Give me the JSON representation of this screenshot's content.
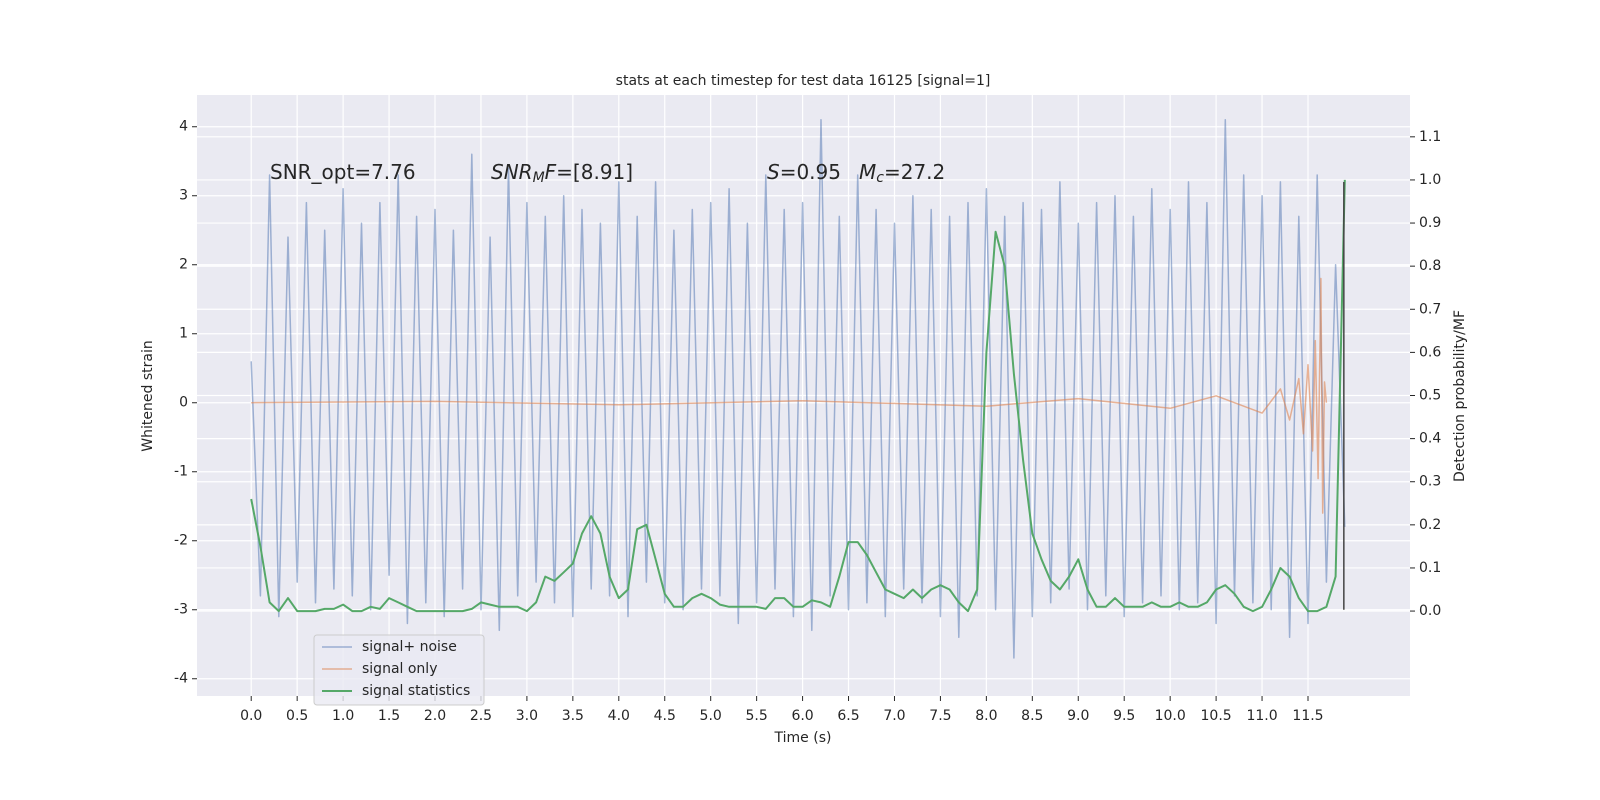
{
  "chart_data": {
    "type": "line",
    "title": "stats at each timestep for test data 16125 [signal=1]",
    "x_label": "Time (s)",
    "y_label": "Whitened strain",
    "y2_label": "Detection probability/MF",
    "xlim": [
      -0.59,
      12.61
    ],
    "ylim": [
      -4.25,
      4.46
    ],
    "y2lim": [
      -0.197,
      1.197
    ],
    "xticks": [
      {
        "value": 0,
        "label": "0.0"
      },
      0.5,
      {
        "value": 1,
        "label": "1.0"
      },
      1.5,
      {
        "value": 2,
        "label": "2.0"
      },
      2.5,
      {
        "value": 3,
        "label": "3.0"
      },
      3.5,
      {
        "value": 4,
        "label": "4.0"
      },
      4.5,
      {
        "value": 5,
        "label": "5.0"
      },
      5.5,
      {
        "value": 6,
        "label": "6.0"
      },
      6.5,
      {
        "value": 7,
        "label": "7.0"
      },
      7.5,
      {
        "value": 8,
        "label": "8.0"
      },
      8.5,
      {
        "value": 9,
        "label": "9.0"
      },
      9.5,
      {
        "value": 10,
        "label": "10.0"
      },
      10.5,
      {
        "value": 11,
        "label": "11.0"
      },
      11.5
    ],
    "yticks": [
      -4,
      -3,
      -2,
      -1,
      0,
      1,
      2,
      3,
      4
    ],
    "y2ticks": [
      {
        "value": 0,
        "label": "0.0"
      },
      0.1,
      0.2,
      0.3,
      0.4,
      0.5,
      0.6,
      0.7,
      0.8,
      0.9,
      {
        "value": 1,
        "label": "1.0"
      },
      1.1
    ],
    "grid": true,
    "legend": "lower left",
    "annotations": [
      [
        {
          "text": "SNR_opt=7.76",
          "italic": false,
          "sub": false
        }
      ],
      [
        {
          "text": "SNR",
          "italic": true,
          "sub": false
        },
        {
          "text": "M",
          "italic": true,
          "sub": true
        },
        {
          "text": "F",
          "italic": true,
          "sub": false
        },
        {
          "text": "=[8.91]",
          "italic": false,
          "sub": false
        }
      ],
      [
        {
          "text": "S",
          "italic": true,
          "sub": false
        },
        {
          "text": "=0.95",
          "italic": false,
          "sub": false
        }
      ],
      [
        {
          "text": "M",
          "italic": true,
          "sub": false
        },
        {
          "text": "c",
          "italic": true,
          "sub": true
        },
        {
          "text": "=27.2",
          "italic": false,
          "sub": false
        }
      ]
    ],
    "vline": {
      "x": 11.89,
      "y": [
        -3.0,
        3.2
      ],
      "color": "#444444"
    },
    "x": [
      0,
      0.1,
      0.2,
      0.3,
      0.4,
      0.5,
      0.6,
      0.7,
      0.8,
      0.9,
      1,
      1.1,
      1.2,
      1.3,
      1.4,
      1.5,
      1.6,
      1.7,
      1.8,
      1.9,
      2,
      2.1,
      2.2,
      2.3,
      2.4,
      2.5,
      2.6,
      2.7,
      2.8,
      2.9,
      3,
      3.1,
      3.2,
      3.3,
      3.4,
      3.5,
      3.6,
      3.7,
      3.8,
      3.9,
      4,
      4.1,
      4.2,
      4.3,
      4.4,
      4.5,
      4.6,
      4.7,
      4.8,
      4.9,
      5,
      5.1,
      5.2,
      5.3,
      5.4,
      5.5,
      5.6,
      5.7,
      5.8,
      5.9,
      6,
      6.1,
      6.2,
      6.3,
      6.4,
      6.5,
      6.6,
      6.7,
      6.8,
      6.9,
      7,
      7.1,
      7.2,
      7.3,
      7.4,
      7.5,
      7.6,
      7.7,
      7.8,
      7.9,
      8,
      8.1,
      8.2,
      8.3,
      8.4,
      8.5,
      8.6,
      8.7,
      8.8,
      8.9,
      9,
      9.1,
      9.2,
      9.3,
      9.4,
      9.5,
      9.6,
      9.7,
      9.8,
      9.9,
      10,
      10.1,
      10.2,
      10.3,
      10.4,
      10.5,
      10.6,
      10.7,
      10.8,
      10.9,
      11,
      11.1,
      11.2,
      11.3,
      11.4,
      11.5,
      11.6,
      11.7,
      11.8,
      11.9
    ],
    "series": [
      {
        "name": "signal+ noise",
        "color": "#4c72b0",
        "axis": "y",
        "values": [
          0.6,
          -2.8,
          3.3,
          -3.1,
          2.4,
          -2.6,
          2.9,
          -2.9,
          2.5,
          -2.7,
          3.1,
          -2.8,
          2.6,
          -3.0,
          2.9,
          -2.5,
          3.3,
          -3.2,
          2.7,
          -2.9,
          2.8,
          -3.1,
          2.5,
          -2.7,
          3.6,
          -3.0,
          2.4,
          -3.3,
          3.4,
          -2.8,
          2.9,
          -2.6,
          2.7,
          -2.9,
          3.0,
          -3.1,
          2.8,
          -2.7,
          2.6,
          -2.8,
          3.2,
          -3.1,
          2.7,
          -2.6,
          3.2,
          -2.9,
          2.5,
          -3.0,
          2.8,
          -2.7,
          2.9,
          -2.8,
          3.1,
          -3.2,
          2.6,
          -2.9,
          3.3,
          -2.7,
          2.8,
          -3.1,
          2.9,
          -3.3,
          4.1,
          -2.8,
          2.7,
          -3.0,
          3.3,
          -2.9,
          2.8,
          -3.1,
          2.6,
          -2.7,
          3.0,
          -2.9,
          2.8,
          -3.1,
          2.7,
          -3.4,
          2.9,
          -2.8,
          3.1,
          -3.0,
          2.7,
          -3.7,
          2.9,
          -3.1,
          2.8,
          -2.9,
          3.2,
          -2.7,
          2.6,
          -3.0,
          2.9,
          -2.8,
          3.0,
          -3.1,
          2.7,
          -2.9,
          3.1,
          -2.8,
          2.8,
          -3.0,
          3.2,
          -2.9,
          2.9,
          -3.2,
          4.1,
          -2.8,
          3.3,
          -2.9,
          3.0,
          -3.0,
          3.2,
          -3.4,
          2.7,
          -3.2,
          3.3,
          -2.6,
          2.0,
          -1.8
        ]
      },
      {
        "name": "signal only",
        "color": "#dd8452",
        "axis": "y",
        "x": [
          0,
          2,
          4,
          6,
          8,
          9,
          10,
          10.5,
          11,
          11.2,
          11.3,
          11.4,
          11.45,
          11.5,
          11.55,
          11.58,
          11.61,
          11.64,
          11.66,
          11.68,
          11.7
        ],
        "values": [
          0,
          0.02,
          -0.03,
          0.03,
          -0.05,
          0.06,
          -0.08,
          0.1,
          -0.15,
          0.2,
          -0.25,
          0.35,
          -0.45,
          0.55,
          -0.7,
          0.9,
          -1.1,
          1.8,
          -1.6,
          0.3,
          0
        ]
      },
      {
        "name": "signal statistics",
        "color": "#55a868",
        "axis": "y2",
        "values": [
          0.26,
          0.15,
          0.02,
          0.0,
          0.03,
          0.0,
          0.0,
          0.0,
          0.005,
          0.005,
          0.015,
          0.0,
          0.0,
          0.01,
          0.005,
          0.03,
          0.02,
          0.01,
          0.0,
          0.0,
          0.0,
          0.0,
          0.0,
          0.0,
          0.005,
          0.02,
          0.015,
          0.01,
          0.01,
          0.01,
          0.0,
          0.02,
          0.08,
          0.07,
          0.09,
          0.11,
          0.18,
          0.22,
          0.18,
          0.08,
          0.03,
          0.05,
          0.19,
          0.2,
          0.12,
          0.04,
          0.01,
          0.01,
          0.03,
          0.04,
          0.03,
          0.015,
          0.01,
          0.01,
          0.01,
          0.01,
          0.005,
          0.03,
          0.03,
          0.01,
          0.01,
          0.025,
          0.02,
          0.01,
          0.08,
          0.16,
          0.16,
          0.13,
          0.09,
          0.05,
          0.04,
          0.03,
          0.05,
          0.03,
          0.05,
          0.06,
          0.05,
          0.02,
          0.0,
          0.05,
          0.6,
          0.88,
          0.8,
          0.55,
          0.35,
          0.18,
          0.12,
          0.07,
          0.05,
          0.08,
          0.12,
          0.05,
          0.01,
          0.01,
          0.03,
          0.01,
          0.01,
          0.01,
          0.02,
          0.01,
          0.01,
          0.02,
          0.01,
          0.01,
          0.02,
          0.05,
          0.06,
          0.04,
          0.01,
          0.0,
          0.01,
          0.05,
          0.1,
          0.08,
          0.03,
          0.0,
          0.0,
          0.01,
          0.08,
          1.0
        ]
      }
    ]
  }
}
